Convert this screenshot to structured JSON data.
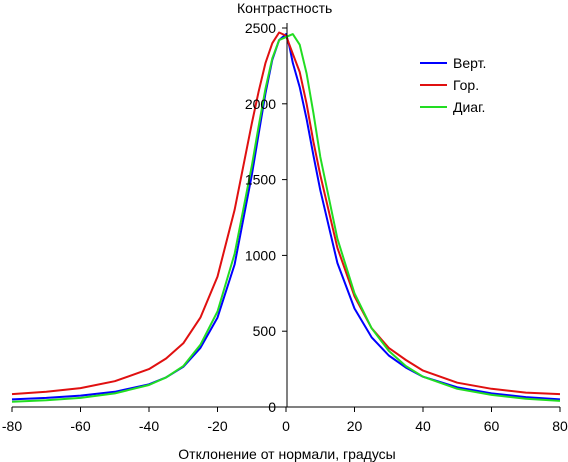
{
  "chart_data": {
    "type": "line",
    "title": "",
    "xlabel": "Отклонение от нормали, градусы",
    "ylabel": "Контрастность",
    "xlim": [
      -80,
      80
    ],
    "ylim": [
      0,
      2500
    ],
    "x_ticks": [
      -80,
      -60,
      -40,
      -20,
      0,
      20,
      40,
      60,
      80
    ],
    "y_ticks": [
      0,
      500,
      1000,
      1500,
      2000,
      2500
    ],
    "grid": false,
    "legend_position": "top-right",
    "series": [
      {
        "name": "Верт.",
        "color": "#0000ff",
        "x": [
          -80,
          -70,
          -60,
          -50,
          -40,
          -35,
          -30,
          -25,
          -20,
          -15,
          -10,
          -8,
          -6,
          -4,
          -2,
          0,
          1,
          2,
          4,
          6,
          8,
          10,
          15,
          20,
          25,
          30,
          35,
          40,
          50,
          60,
          70,
          80
        ],
        "y": [
          50,
          60,
          75,
          100,
          150,
          195,
          265,
          390,
          590,
          940,
          1530,
          1800,
          2070,
          2290,
          2420,
          2460,
          2380,
          2270,
          2110,
          1900,
          1660,
          1430,
          950,
          650,
          460,
          340,
          260,
          200,
          130,
          90,
          65,
          50
        ]
      },
      {
        "name": "Гор.",
        "color": "#e01010",
        "x": [
          -80,
          -70,
          -60,
          -50,
          -40,
          -35,
          -30,
          -25,
          -20,
          -15,
          -10,
          -8,
          -6,
          -4,
          -2,
          0,
          1,
          2,
          4,
          6,
          8,
          10,
          15,
          20,
          25,
          30,
          35,
          40,
          50,
          60,
          70,
          80
        ],
        "y": [
          85,
          100,
          125,
          170,
          250,
          320,
          420,
          590,
          860,
          1300,
          1870,
          2080,
          2270,
          2400,
          2470,
          2450,
          2390,
          2330,
          2210,
          2000,
          1750,
          1530,
          1050,
          730,
          520,
          390,
          310,
          240,
          160,
          120,
          95,
          85
        ]
      },
      {
        "name": "Диаг.",
        "color": "#22dd22",
        "x": [
          -80,
          -70,
          -60,
          -50,
          -40,
          -35,
          -30,
          -25,
          -20,
          -15,
          -10,
          -8,
          -6,
          -4,
          -2,
          0,
          1,
          2,
          4,
          6,
          8,
          10,
          15,
          20,
          25,
          30,
          35,
          40,
          50,
          60,
          70,
          80
        ],
        "y": [
          35,
          45,
          60,
          90,
          145,
          195,
          270,
          410,
          630,
          1010,
          1590,
          1850,
          2100,
          2300,
          2420,
          2440,
          2450,
          2460,
          2390,
          2200,
          1940,
          1650,
          1110,
          750,
          520,
          370,
          270,
          200,
          120,
          80,
          55,
          40
        ]
      }
    ]
  }
}
